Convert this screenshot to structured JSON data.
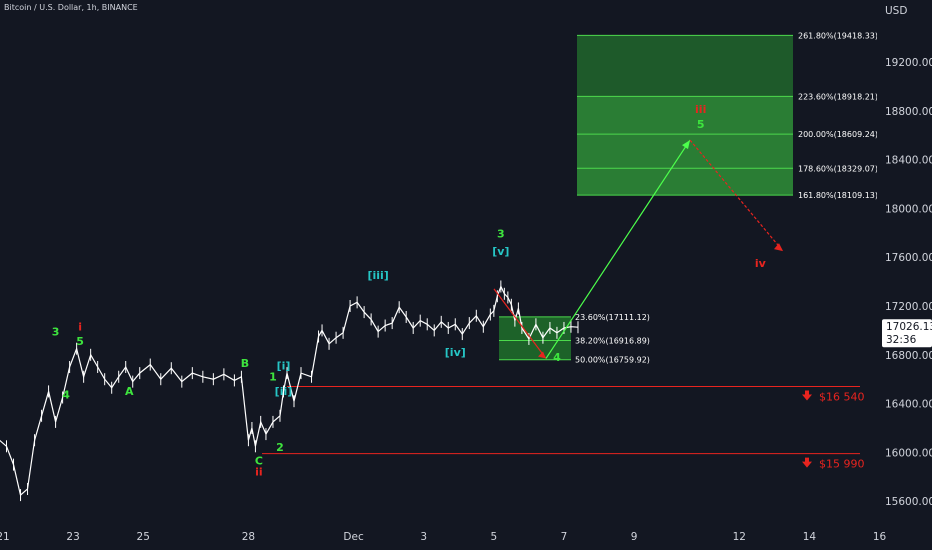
{
  "header": {
    "title": "Bitcoin / U.S. Dollar, 1h, BINANCE"
  },
  "axis": {
    "currency": "USD",
    "price_ticks": [
      "19200.00",
      "18800.00",
      "18400.00",
      "18000.00",
      "17600.00",
      "17200.00",
      "16800.00",
      "16400.00",
      "16000.00",
      "15600.00"
    ],
    "date_ticks": [
      "21",
      "23",
      "25",
      "28",
      "Dec",
      "3",
      "5",
      "7",
      "9",
      "12",
      "14",
      "16"
    ]
  },
  "price_badge": {
    "price": "17026.13",
    "countdown": "32:36"
  },
  "colors": {
    "background": "#131722",
    "up": "#ffffff",
    "green": "#3ee43e",
    "teal": "#26c6c6",
    "red": "#e8241f",
    "zone": "#2e8b2e"
  },
  "fib_upper": [
    {
      "label": "261.80%(19418.33)",
      "price": 19418.33
    },
    {
      "label": "223.60%(18918.21)",
      "price": 18918.21
    },
    {
      "label": "200.00%(18609.24)",
      "price": 18609.24
    },
    {
      "label": "178.60%(18329.07)",
      "price": 18329.07
    },
    {
      "label": "161.80%(18109.13)",
      "price": 18109.13
    }
  ],
  "fib_lower": [
    {
      "label": "23.60%(17111.12)",
      "price": 17111.12
    },
    {
      "label": "38.20%(16916.89)",
      "price": 16916.89
    },
    {
      "label": "50.00%(16759.92)",
      "price": 16759.92
    }
  ],
  "levels": [
    {
      "label": "$16 540",
      "price": 16540
    },
    {
      "label": "$15 990",
      "price": 15990
    }
  ],
  "wave_labels": [
    {
      "text": "1",
      "color": "green",
      "day": 20.2,
      "price": 16050
    },
    {
      "text": "2",
      "color": "green",
      "day": 20.6,
      "price": 15590
    },
    {
      "text": "3",
      "color": "green",
      "day": 22.5,
      "price": 16960
    },
    {
      "text": "4",
      "color": "green",
      "day": 22.8,
      "price": 16440
    },
    {
      "text": "5",
      "color": "green",
      "day": 23.2,
      "price": 16880
    },
    {
      "text": "i",
      "color": "red",
      "day": 23.2,
      "price": 17000
    },
    {
      "text": "A",
      "color": "green",
      "day": 24.6,
      "price": 16470
    },
    {
      "text": "B",
      "color": "green",
      "day": 27.9,
      "price": 16700
    },
    {
      "text": "1",
      "color": "green",
      "day": 28.7,
      "price": 16590
    },
    {
      "text": "[i]",
      "color": "teal",
      "day": 29.0,
      "price": 16680
    },
    {
      "text": "[ii]",
      "color": "teal",
      "day": 29.0,
      "price": 16470
    },
    {
      "text": "2",
      "color": "green",
      "day": 28.9,
      "price": 16010
    },
    {
      "text": "C",
      "color": "green",
      "day": 28.3,
      "price": 15900
    },
    {
      "text": "ii",
      "color": "red",
      "day": 28.3,
      "price": 15810
    },
    {
      "text": "[iii]",
      "color": "teal",
      "day": 31.7,
      "price": 17420
    },
    {
      "text": "[iv]",
      "color": "teal",
      "day": 33.9,
      "price": 16790
    },
    {
      "text": "3",
      "color": "green",
      "day": 35.2,
      "price": 17760
    },
    {
      "text": "[v]",
      "color": "teal",
      "day": 35.2,
      "price": 17620
    },
    {
      "text": "4",
      "color": "green",
      "day": 36.8,
      "price": 16750
    },
    {
      "text": "iii",
      "color": "red",
      "day": 40.9,
      "price": 18780
    },
    {
      "text": "5",
      "color": "green",
      "day": 40.9,
      "price": 18660
    },
    {
      "text": "iv",
      "color": "red",
      "day": 42.6,
      "price": 17520
    }
  ],
  "chart_data": {
    "type": "line",
    "title": "Bitcoin / U.S. Dollar, 1h, BINANCE",
    "ylim": [
      15450,
      19630
    ],
    "x_unit": "day (Nov 21 = 21, Dec 1 = 31)",
    "series": [
      {
        "x": [
          20,
          20.4,
          20.6,
          20.9,
          21.1,
          21.3,
          21.5,
          21.7,
          21.9,
          22.1,
          22.3,
          22.5,
          22.7,
          22.9,
          23.1,
          23.3,
          23.5,
          23.7,
          23.9,
          24.1,
          24.3,
          24.5,
          24.7,
          24.9,
          25.2,
          25.5,
          25.8,
          26.1,
          26.4,
          26.7,
          27.0,
          27.3,
          27.6,
          27.8,
          28.0,
          28.1,
          28.2,
          28.35,
          28.5,
          28.7,
          28.9,
          29.0,
          29.1,
          29.3,
          29.5,
          29.8,
          30.0,
          30.1,
          30.3,
          30.5,
          30.7,
          30.9,
          31.1,
          31.3,
          31.5,
          31.7,
          31.9,
          32.1,
          32.3,
          32.5,
          32.7,
          32.9,
          33.1,
          33.3,
          33.5,
          33.7,
          33.9,
          34.1,
          34.3,
          34.5,
          34.7,
          34.9,
          35.0,
          35.1,
          35.2,
          35.3,
          35.4,
          35.5,
          35.6,
          35.7,
          35.8,
          36.0,
          36.2,
          36.4,
          36.6,
          36.8,
          37.0,
          37.2,
          37.4
        ],
        "y": [
          16500,
          16200,
          16300,
          16100,
          16050,
          15900,
          15650,
          15700,
          16100,
          16300,
          16500,
          16250,
          16450,
          16700,
          16850,
          16620,
          16800,
          16700,
          16600,
          16530,
          16620,
          16700,
          16580,
          16650,
          16720,
          16600,
          16690,
          16580,
          16650,
          16620,
          16600,
          16640,
          16590,
          16620,
          16100,
          16200,
          16050,
          16250,
          16150,
          16250,
          16300,
          16500,
          16650,
          16420,
          16650,
          16620,
          16950,
          17000,
          16890,
          16940,
          16980,
          17200,
          17230,
          17150,
          17090,
          16990,
          17040,
          17060,
          17190,
          17110,
          17020,
          17080,
          17050,
          17000,
          17070,
          17020,
          17050,
          16970,
          17060,
          17120,
          17030,
          17130,
          17160,
          17280,
          17360,
          17300,
          17270,
          17210,
          17080,
          17180,
          17020,
          16930,
          17050,
          16940,
          17020,
          16980,
          17020,
          17030,
          17026
        ]
      }
    ]
  }
}
